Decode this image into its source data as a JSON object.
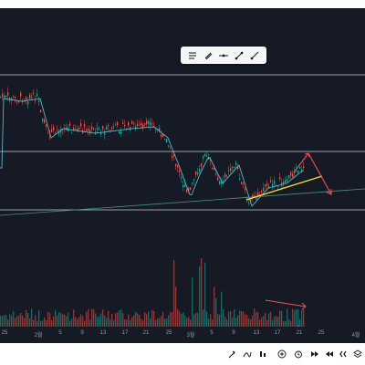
{
  "time_axis": {
    "ticks": [
      "25",
      "2월",
      "5",
      "9",
      "13",
      "17",
      "21",
      "25",
      "3월",
      "5",
      "9",
      "13",
      "17",
      "21",
      "25",
      "4월"
    ]
  },
  "toolbar": {
    "tools": [
      "text-lines-icon",
      "brush-icon",
      "horizontal-line-icon",
      "trend-line-icon",
      "ray-line-icon"
    ]
  },
  "bottom_bar": {
    "icons": [
      "measure-icon",
      "indicators-icon",
      "chart-type-icon",
      "add-icon",
      "alert-icon",
      "replay-icon",
      "undo-icon",
      "redo-icon",
      "rewind-icon",
      "layers-icon"
    ]
  },
  "colors": {
    "background": "#161a25",
    "up": "#26a69a",
    "down": "#ef5350",
    "trend_yellow": "#f5e13a",
    "ma_line": "#5fb3c9",
    "level_line": "#c8ccd4"
  }
}
